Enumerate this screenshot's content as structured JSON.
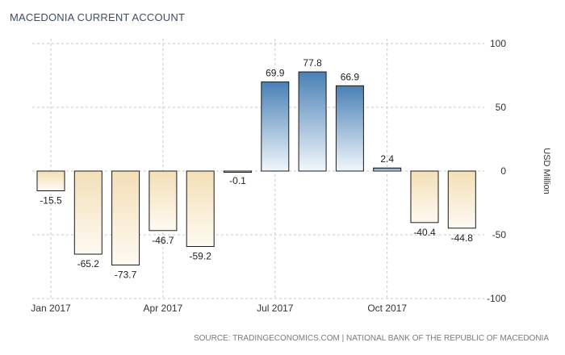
{
  "title": "MACEDONIA CURRENT ACCOUNT",
  "source": "SOURCE: TRADINGECONOMICS.COM | NATIONAL BANK OF THE REPUBLIC OF MACEDONIA",
  "colors": {
    "positive_top": "#4a80b5",
    "positive_bottom": "#f2f7fb",
    "negative_top": "#f3dfb7",
    "negative_bottom": "#fefaf2",
    "bar_stroke": "#1a1a1a",
    "grid": "#c9c9c9"
  },
  "chart_data": {
    "type": "bar",
    "title": "MACEDONIA CURRENT ACCOUNT",
    "ylabel": "USD Million",
    "ylim": [
      -100,
      100
    ],
    "yticks": [
      100,
      50,
      0,
      -50,
      -100
    ],
    "grid": true,
    "x_tick_labels": [
      "Jan 2017",
      "Apr 2017",
      "Jul 2017",
      "Oct 2017"
    ],
    "x_tick_positions": [
      1,
      4,
      7,
      10
    ],
    "values": [
      -15.5,
      -65.2,
      -73.7,
      -46.7,
      -59.2,
      -0.1,
      69.9,
      77.8,
      66.9,
      2.4,
      -40.4,
      -44.8
    ],
    "data_labels": [
      "-15.5",
      "-65.2",
      "-73.7",
      "-46.7",
      "-59.2",
      "-0.1",
      "69.9",
      "77.8",
      "66.9",
      "2.4",
      "-40.4",
      "-44.8"
    ]
  }
}
